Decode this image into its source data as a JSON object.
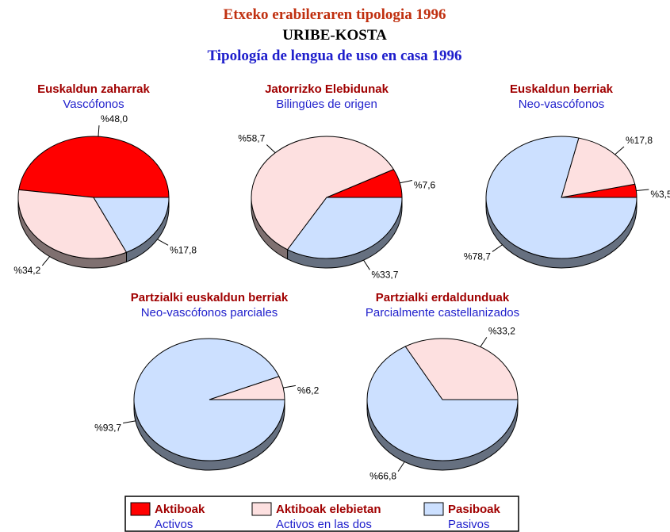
{
  "header": {
    "title": "Etxeko erabileraren tipologia 1996",
    "subtitle": "URIBE-KOSTA",
    "translation": "Tipología de lengua de uso en casa 1996"
  },
  "chart_data": [
    {
      "type": "pie",
      "title": "Euskaldun zaharrak",
      "subtitle": "Vascófonos",
      "categories": [
        "Aktiboak",
        "Aktiboak elebietan",
        "Pasiboak"
      ],
      "values": [
        48.0,
        34.2,
        17.8
      ],
      "value_labels": [
        "%48,0",
        "%34,2",
        "%17,8"
      ],
      "colors": [
        "#ff0000",
        "#fde0e0",
        "#cce0ff"
      ]
    },
    {
      "type": "pie",
      "title": "Jatorrizko Elebidunak",
      "subtitle": "Bilingües de origen",
      "categories": [
        "Aktiboak",
        "Aktiboak elebietan",
        "Pasiboak"
      ],
      "values": [
        7.6,
        58.7,
        33.7
      ],
      "value_labels": [
        "%7,6",
        "%58,7",
        "%33,7"
      ],
      "colors": [
        "#ff0000",
        "#fde0e0",
        "#cce0ff"
      ]
    },
    {
      "type": "pie",
      "title": "Euskaldun berriak",
      "subtitle": "Neo-vascófonos",
      "categories": [
        "Aktiboak",
        "Aktiboak elebietan",
        "Pasiboak"
      ],
      "values": [
        3.5,
        17.8,
        78.7
      ],
      "value_labels": [
        "%3,5",
        "%17,8",
        "%78,7"
      ],
      "colors": [
        "#ff0000",
        "#fde0e0",
        "#cce0ff"
      ]
    },
    {
      "type": "pie",
      "title": "Partzialki euskaldun berriak",
      "subtitle": "Neo-vascófonos parciales",
      "categories": [
        "Aktiboak elebietan",
        "Pasiboak"
      ],
      "values": [
        6.2,
        93.7
      ],
      "value_labels": [
        "%6,2",
        "%93,7"
      ],
      "colors": [
        "#fde0e0",
        "#cce0ff"
      ]
    },
    {
      "type": "pie",
      "title": "Partzialki erdaldunduak",
      "subtitle": "Parcialmente castellanizados",
      "categories": [
        "Aktiboak elebietan",
        "Pasiboak"
      ],
      "values": [
        33.2,
        66.8
      ],
      "value_labels": [
        "%33,2",
        "%66,8"
      ],
      "colors": [
        "#fde0e0",
        "#cce0ff"
      ]
    }
  ],
  "legend": {
    "items": [
      {
        "name": "Aktiboak",
        "translation": "Activos",
        "color": "#ff0000"
      },
      {
        "name": "Aktiboak elebietan",
        "translation": "Activos en las dos",
        "color": "#fde0e0"
      },
      {
        "name": "Pasiboak",
        "translation": "Pasivos",
        "color": "#cce0ff"
      }
    ]
  }
}
